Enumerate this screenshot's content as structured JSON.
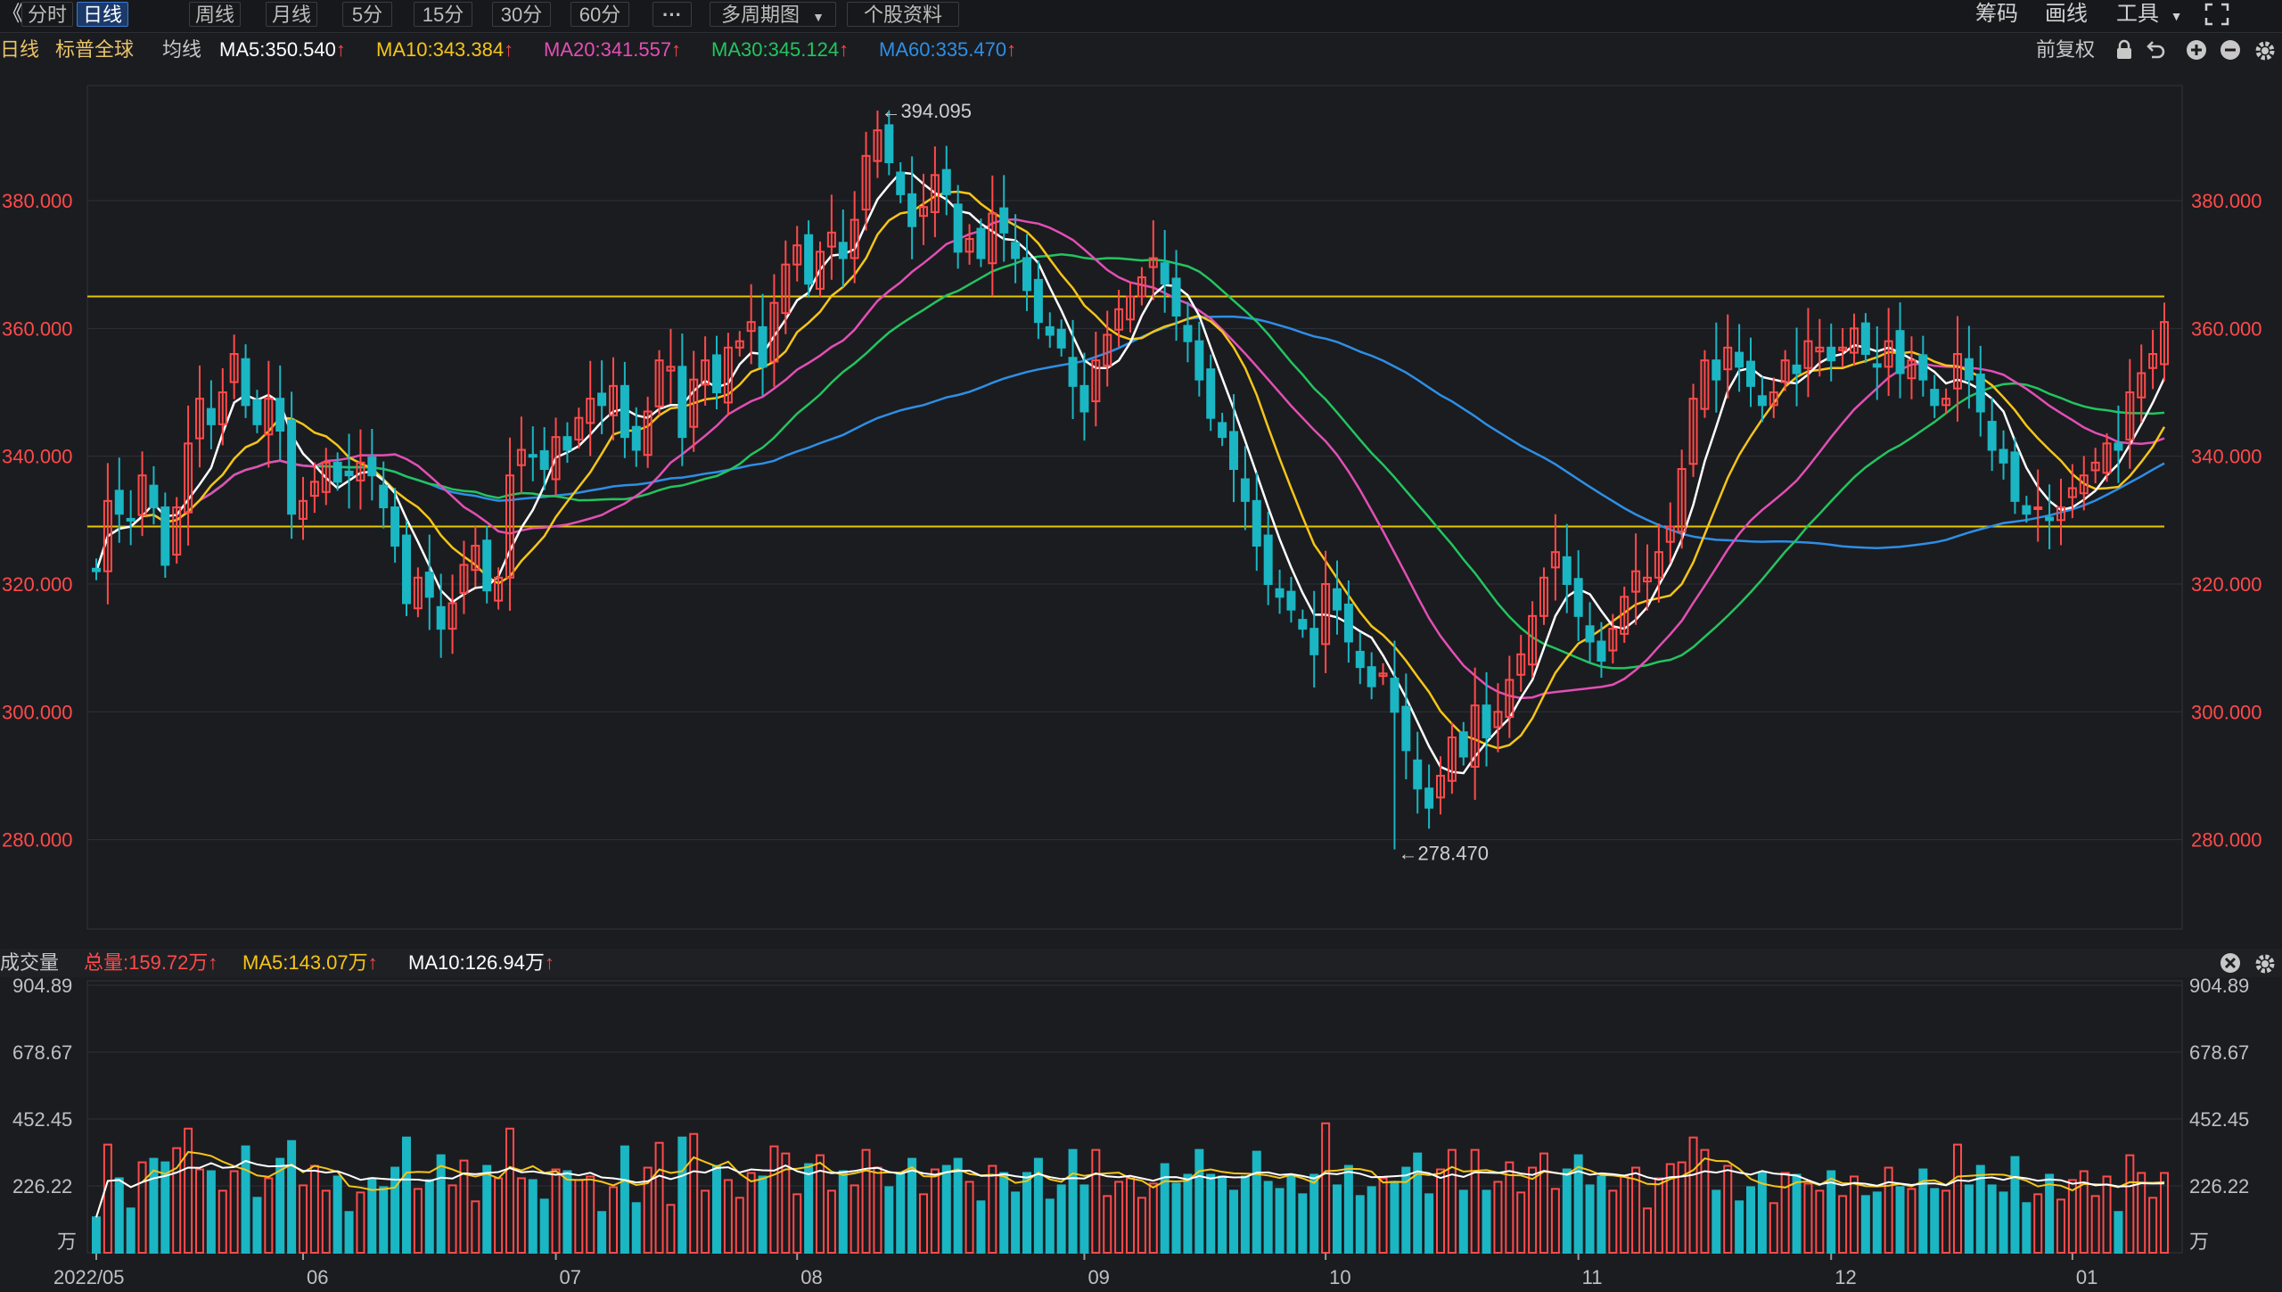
{
  "toolbar": {
    "back_icon": "double-chevron-left-icon",
    "back_glyph": "《",
    "tabs": [
      "分时",
      "日线",
      "周线",
      "月线",
      "5分",
      "15分",
      "30分",
      "60分"
    ],
    "active_tab": "日线",
    "more_label": "···",
    "multi_period": "多周期图",
    "stock_info": "个股资料",
    "right": {
      "chips": "筹码",
      "draw": "画线",
      "tools": "工具",
      "fullscreen_icon": "fullscreen-icon"
    }
  },
  "legend": {
    "period": "日线",
    "name": "标普全球",
    "ma_label": "均线",
    "ma5": "MA5:350.540",
    "ma10": "MA10:343.384",
    "ma20": "MA20:341.557",
    "ma30": "MA30:345.124",
    "ma60": "MA60:335.470",
    "adjust": "前复权",
    "up_arrow": "↑",
    "icons": [
      "lock-icon",
      "undo-icon",
      "zoom-in-icon",
      "zoom-out-icon",
      "gear-icon"
    ]
  },
  "colors": {
    "up": "#ff4a4a",
    "down": "#1ab6c3",
    "ma5": "#ffffff",
    "ma10": "#f5c518",
    "ma20": "#e24fb4",
    "ma30": "#22c55e",
    "ma60": "#2d8fe6",
    "hline": "#e6c700",
    "grid": "#2f3137",
    "axis_text": "#ff4a4a",
    "vol_axis_text": "#c0c0c0"
  },
  "volume_legend": {
    "title": "成交量",
    "total": "总量:159.72万",
    "ma5": "MA5:143.07万",
    "ma10": "MA10:126.94万",
    "up_arrow": "↑",
    "icons": [
      "close-circle-icon",
      "gear-icon"
    ]
  },
  "chart_data": {
    "type": "candlestick",
    "title": "标普全球",
    "y_ticks": [
      "380.000",
      "360.000",
      "340.000",
      "320.000",
      "300.000",
      "280.000"
    ],
    "y_tick_values": [
      380,
      360,
      340,
      320,
      300,
      280
    ],
    "ylim": [
      266,
      398
    ],
    "vol_ticks": [
      "904.89",
      "678.67",
      "452.45",
      "226.22"
    ],
    "vol_tick_values": [
      904.89,
      678.67,
      452.45,
      226.22
    ],
    "vol_unit": "万",
    "vol_ylim": [
      0,
      920
    ],
    "x_labels": [
      "2022/05",
      "06",
      "07",
      "08",
      "09",
      "10",
      "11",
      "12",
      "01"
    ],
    "x_label_index": [
      0,
      18,
      40,
      61,
      86,
      107,
      129,
      151,
      172
    ],
    "horizontal_lines": [
      365.0,
      329.0
    ],
    "annotations": [
      {
        "text": "←394.095",
        "index": 68,
        "value": 394.095
      },
      {
        "text": "←278.470",
        "index": 113,
        "value": 278.47
      }
    ],
    "last_values": {
      "MA5": 350.54,
      "MA10": 343.384,
      "MA20": 341.557,
      "MA30": 345.124,
      "MA60": 335.47
    },
    "close": [
      322,
      333,
      331,
      330,
      337,
      332,
      323,
      332,
      342,
      349,
      345,
      350,
      356,
      348,
      345,
      349,
      344,
      331,
      333,
      336,
      339,
      336,
      337,
      339,
      337,
      332,
      326,
      317,
      321,
      318,
      313,
      317,
      323,
      326,
      319,
      321,
      337,
      341,
      340,
      338,
      343,
      341,
      346,
      349,
      348,
      351,
      343,
      341,
      347,
      355,
      354,
      343,
      352,
      355,
      350,
      357,
      358,
      361,
      354,
      364,
      370,
      373,
      367,
      372,
      375,
      371,
      377,
      387,
      391,
      386,
      381,
      376,
      379,
      384,
      381,
      372,
      374,
      371,
      378,
      375,
      371,
      366,
      361,
      359,
      357,
      351,
      347,
      355,
      359,
      363,
      365,
      368,
      371,
      367,
      362,
      358,
      352,
      346,
      343,
      338,
      333,
      326,
      320,
      318,
      316,
      313,
      309,
      320,
      316,
      311,
      307,
      304,
      306,
      300,
      294,
      288,
      285,
      290,
      296,
      293,
      301,
      296,
      300,
      305,
      309,
      315,
      321,
      325,
      320,
      315,
      311,
      308,
      313,
      318,
      322,
      321,
      325,
      329,
      338,
      349,
      355,
      352,
      357,
      354,
      351,
      348,
      350,
      355,
      353,
      358,
      357,
      355,
      357,
      360,
      356,
      354,
      358,
      353,
      355,
      352,
      348,
      349,
      356,
      352,
      347,
      341,
      339,
      333,
      331,
      332,
      330,
      332,
      335,
      337,
      339,
      342,
      341,
      350,
      353,
      356,
      361
    ]
  }
}
